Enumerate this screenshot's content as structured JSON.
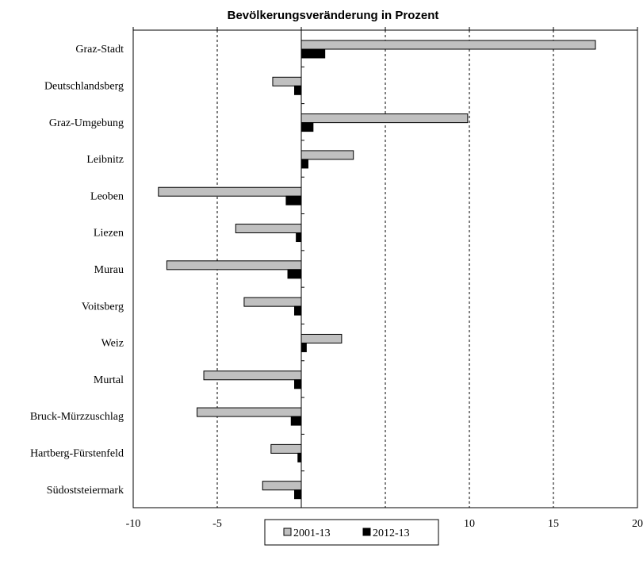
{
  "chart_data": {
    "type": "bar",
    "orientation": "horizontal",
    "title": "Bevölkerungsveränderung in Prozent",
    "categories": [
      "Graz-Stadt",
      "Deutschlandsberg",
      "Graz-Umgebung",
      "Leibnitz",
      "Leoben",
      "Liezen",
      "Murau",
      "Voitsberg",
      "Weiz",
      "Murtal",
      "Bruck-Mürzzuschlag",
      "Hartberg-Fürstenfeld",
      "Südoststeiermark"
    ],
    "series": [
      {
        "name": "2001-13",
        "color": "#c0c0c0",
        "values": [
          17.5,
          -1.7,
          9.9,
          3.1,
          -8.5,
          -3.9,
          -8.0,
          -3.4,
          2.4,
          -5.8,
          -6.2,
          -1.8,
          -2.3
        ]
      },
      {
        "name": "2012-13",
        "color": "#000000",
        "values": [
          1.4,
          -0.4,
          0.7,
          0.4,
          -0.9,
          -0.3,
          -0.8,
          -0.4,
          0.3,
          -0.4,
          -0.6,
          -0.2,
          -0.4
        ]
      }
    ],
    "xlim": [
      -10,
      20
    ],
    "xticks": [
      "-10",
      "-5",
      "0",
      "5",
      "10",
      "15",
      "20"
    ],
    "grid": true,
    "legend": "bottom-center"
  }
}
